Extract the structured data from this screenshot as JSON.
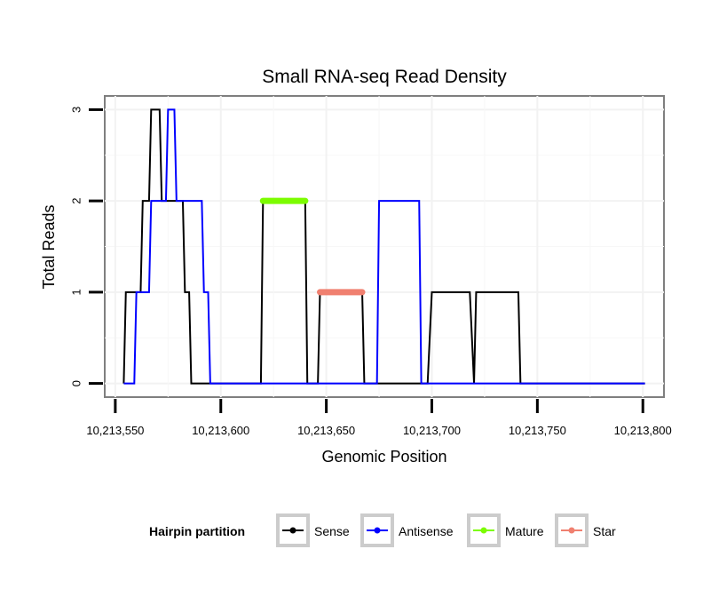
{
  "chart_data": {
    "type": "line",
    "title": "Small RNA-seq Read Density",
    "xlabel": "Genomic Position",
    "ylabel": "Total Reads",
    "xlim": [
      10213545,
      10213810
    ],
    "ylim": [
      -0.15,
      3.15
    ],
    "x_ticks": [
      10213550,
      10213600,
      10213650,
      10213700,
      10213750,
      10213800
    ],
    "x_tick_labels": [
      "10,213,550",
      "10,213,600",
      "10,213,650",
      "10,213,700",
      "10,213,750",
      "10,213,800"
    ],
    "y_ticks": [
      0,
      1,
      2,
      3
    ],
    "y_tick_labels": [
      "0",
      "1",
      "2",
      "3"
    ],
    "grid": true,
    "legend_position": "bottom",
    "legend_title": "Hairpin partition",
    "legend": [
      {
        "name": "Sense",
        "color": "#000000"
      },
      {
        "name": "Antisense",
        "color": "#0000ff"
      },
      {
        "name": "Mature",
        "color": "#7cfc00"
      },
      {
        "name": "Star",
        "color": "#f08070"
      }
    ],
    "series": [
      {
        "name": "Sense",
        "color": "#000000",
        "width": 2,
        "points": [
          [
            10213554,
            0
          ],
          [
            10213555,
            1
          ],
          [
            10213562,
            1
          ],
          [
            10213563,
            2
          ],
          [
            10213566,
            2
          ],
          [
            10213567,
            3
          ],
          [
            10213571,
            3
          ],
          [
            10213572,
            2
          ],
          [
            10213582,
            2
          ],
          [
            10213583,
            1
          ],
          [
            10213585,
            1
          ],
          [
            10213586,
            0
          ],
          [
            10213619,
            0
          ],
          [
            10213620,
            2
          ],
          [
            10213640,
            2
          ],
          [
            10213641,
            0
          ],
          [
            10213646,
            0
          ],
          [
            10213647,
            1
          ],
          [
            10213667,
            1
          ],
          [
            10213668,
            0
          ],
          [
            10213698,
            0
          ],
          [
            10213700,
            1
          ],
          [
            10213718,
            1
          ],
          [
            10213720,
            0
          ],
          [
            10213721,
            1
          ],
          [
            10213741,
            1
          ],
          [
            10213742,
            0
          ],
          [
            10213801,
            0
          ]
        ]
      },
      {
        "name": "Antisense",
        "color": "#0000ff",
        "width": 2,
        "points": [
          [
            10213554,
            0
          ],
          [
            10213559,
            0
          ],
          [
            10213560,
            1
          ],
          [
            10213566,
            1
          ],
          [
            10213567,
            2
          ],
          [
            10213574,
            2
          ],
          [
            10213575,
            3
          ],
          [
            10213578,
            3
          ],
          [
            10213579,
            2
          ],
          [
            10213591,
            2
          ],
          [
            10213592,
            1
          ],
          [
            10213594,
            1
          ],
          [
            10213595,
            0
          ],
          [
            10213674,
            0
          ],
          [
            10213675,
            2
          ],
          [
            10213694,
            2
          ],
          [
            10213695,
            0
          ],
          [
            10213801,
            0
          ]
        ]
      },
      {
        "name": "Mature",
        "color": "#7cfc00",
        "width": 7,
        "points": [
          [
            10213620,
            2
          ],
          [
            10213640,
            2
          ]
        ]
      },
      {
        "name": "Star",
        "color": "#f08070",
        "width": 7,
        "points": [
          [
            10213647,
            1
          ],
          [
            10213667,
            1
          ]
        ]
      }
    ]
  }
}
